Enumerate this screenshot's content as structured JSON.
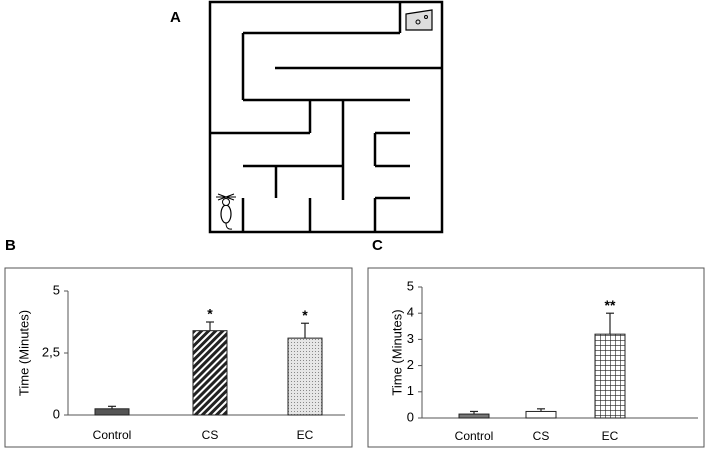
{
  "panel_labels": [
    "A",
    "B",
    "C"
  ],
  "chart_data": [
    {
      "type": "bar",
      "ylabel": "Time (Minutes)",
      "categories": [
        "Control",
        "CS",
        "EC"
      ],
      "values": [
        0.25,
        3.4,
        3.1
      ],
      "errors": [
        0.1,
        0.35,
        0.6
      ],
      "annotations": [
        null,
        "*",
        "*"
      ],
      "colors": [
        "#555555",
        "#333333",
        "#cfcfcf"
      ],
      "patterns": [
        "solid",
        "diagonal",
        "dots"
      ],
      "ylim": [
        0,
        5
      ],
      "yticks": [
        0,
        {
          "value": 2.5,
          "label": "2,5"
        },
        5
      ]
    },
    {
      "type": "bar",
      "ylabel": "Time (Minutes)",
      "categories": [
        "Control",
        "CS",
        "EC"
      ],
      "values": [
        0.15,
        0.25,
        3.2
      ],
      "errors": [
        0.1,
        0.1,
        0.8
      ],
      "annotations": [
        null,
        null,
        "**"
      ],
      "colors": [
        "#777777",
        "#ffffff",
        "#333333"
      ],
      "patterns": [
        "solid",
        "solid",
        "grid"
      ],
      "ylim": [
        0,
        5
      ],
      "yticks": [
        0,
        1,
        2,
        3,
        4,
        5
      ]
    }
  ]
}
